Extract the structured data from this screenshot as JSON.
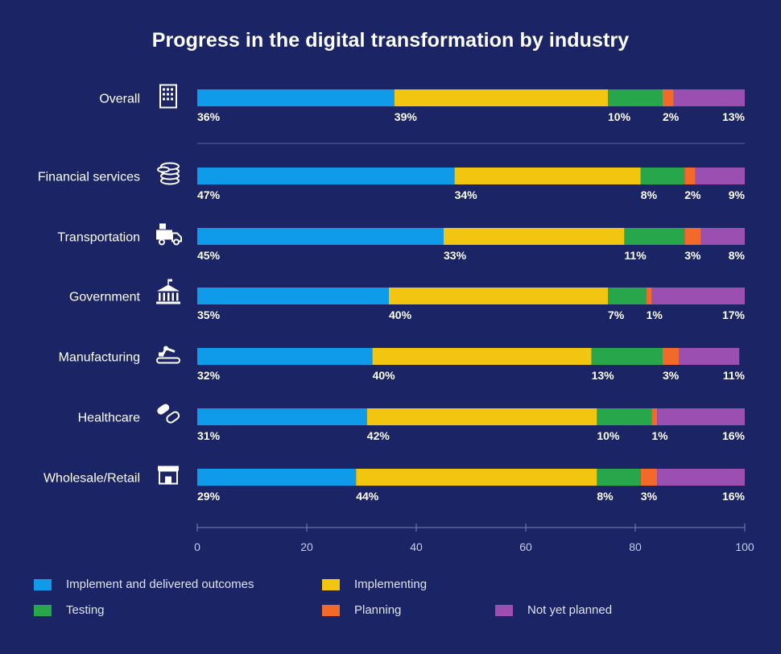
{
  "chart_data": {
    "type": "bar",
    "orientation": "horizontal",
    "stacked": true,
    "title": "Progress in the digital transformation by industry",
    "categories": [
      "Overall",
      "Financial services",
      "Transportation",
      "Government",
      "Manufacturing",
      "Healthcare",
      "Wholesale/Retail"
    ],
    "category_icons": [
      "building-icon",
      "coins-icon",
      "truck-icon",
      "capitol-icon",
      "robot-arm-icon",
      "pill-icon",
      "store-icon"
    ],
    "series": [
      {
        "name": "Implement and delivered outcomes",
        "color": "#0f9bea",
        "values": [
          36,
          47,
          45,
          35,
          32,
          31,
          29
        ]
      },
      {
        "name": "Implementing",
        "color": "#f2c511",
        "values": [
          39,
          34,
          33,
          40,
          40,
          42,
          44
        ]
      },
      {
        "name": "Testing",
        "color": "#27a64b",
        "values": [
          10,
          8,
          11,
          7,
          13,
          10,
          8
        ]
      },
      {
        "name": "Planning",
        "color": "#f26a2a",
        "values": [
          2,
          2,
          3,
          1,
          3,
          1,
          3
        ]
      },
      {
        "name": "Not yet planned",
        "color": "#9b4fb0",
        "values": [
          13,
          9,
          8,
          17,
          11,
          16,
          16
        ]
      }
    ],
    "data_labels": [
      [
        "36%",
        "39%",
        "10%",
        "2%",
        "13%"
      ],
      [
        "47%",
        "34%",
        "8%",
        "2%",
        "9%"
      ],
      [
        "45%",
        "33%",
        "11%",
        "3%",
        "8%"
      ],
      [
        "35%",
        "40%",
        "7%",
        "1%",
        "17%"
      ],
      [
        "32%",
        "40%",
        "13%",
        "3%",
        "11%"
      ],
      [
        "31%",
        "42%",
        "10%",
        "1%",
        "16%"
      ],
      [
        "29%",
        "44%",
        "8%",
        "3%",
        "16%"
      ]
    ],
    "xlim": [
      0,
      100
    ],
    "xticks": [
      0,
      20,
      40,
      60,
      80,
      100
    ],
    "xtick_labels": [
      "0",
      "20",
      "40",
      "60",
      "80",
      "100"
    ],
    "legend_position": "bottom"
  }
}
